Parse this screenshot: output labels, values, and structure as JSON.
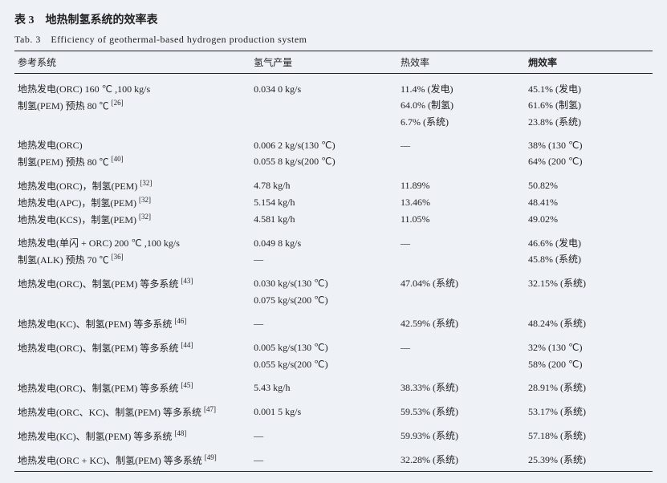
{
  "title_cn": "表 3　地热制氢系统的效率表",
  "title_en": "Tab. 3　Efficiency of geothermal-based hydrogen production system",
  "headers": {
    "c1": "参考系统",
    "c2": "氢气产量",
    "c3": "热效率",
    "c4": "㶲效率"
  },
  "rows": [
    {
      "c1": "地热发电(ORC) 160 ℃ ,100 kg/s",
      "c2": "0.034 0 kg/s",
      "c3": "11.4% (发电)",
      "c4": "45.1% (发电)",
      "group": true
    },
    {
      "c1": "制氢(PEM) 预热 80 ℃ [26]",
      "c2": "",
      "c3": "64.0% (制氢)",
      "c4": "61.6% (制氢)",
      "sup": "[26]",
      "c1_base": "制氢(PEM) 预热 80 ℃ "
    },
    {
      "c1": "",
      "c2": "",
      "c3": "6.7% (系统)",
      "c4": "23.8% (系统)"
    },
    {
      "c1": "地热发电(ORC)",
      "c2": "0.006 2 kg/s(130 ℃)",
      "c3": "—",
      "c4": "38% (130 ℃)",
      "group": true
    },
    {
      "c1": "制氢(PEM) 预热 80 ℃ [40]",
      "c2": "0.055 8 kg/s(200 ℃)",
      "c3": "",
      "c4": "64% (200 ℃)",
      "sup": "[40]",
      "c1_base": "制氢(PEM) 预热 80 ℃ "
    },
    {
      "c1": "地热发电(ORC)，制氢(PEM) [32]",
      "c2": "4.78 kg/h",
      "c3": "11.89%",
      "c4": "50.82%",
      "group": true,
      "sup": "[32]",
      "c1_base": "地热发电(ORC)，制氢(PEM) "
    },
    {
      "c1": "地热发电(APC)，制氢(PEM) [32]",
      "c2": "5.154 kg/h",
      "c3": "13.46%",
      "c4": "48.41%",
      "sup": "[32]",
      "c1_base": "地热发电(APC)，制氢(PEM) "
    },
    {
      "c1": "地热发电(KCS)，制氢(PEM) [32]",
      "c2": "4.581 kg/h",
      "c3": "11.05%",
      "c4": "49.02%",
      "sup": "[32]",
      "c1_base": "地热发电(KCS)，制氢(PEM) "
    },
    {
      "c1": "地热发电(单闪 + ORC) 200 ℃ ,100 kg/s",
      "c2": "0.049 8 kg/s",
      "c3": "—",
      "c4": "46.6% (发电)",
      "group": true
    },
    {
      "c1": "制氢(ALK) 预热 70 ℃ [36]",
      "c2": "—",
      "c3": "",
      "c4": "45.8% (系统)",
      "sup": "[36]",
      "c1_base": "制氢(ALK) 预热 70 ℃ "
    },
    {
      "c1": "地热发电(ORC)、制氢(PEM) 等多系统 [43]",
      "c2": "0.030 kg/s(130 ℃)",
      "c3": "47.04% (系统)",
      "c4": "32.15% (系统)",
      "group": true,
      "sup": "[43]",
      "c1_base": "地热发电(ORC)、制氢(PEM) 等多系统 "
    },
    {
      "c1": "",
      "c2": "0.075 kg/s(200 ℃)",
      "c3": "",
      "c4": ""
    },
    {
      "c1": "地热发电(KC)、制氢(PEM) 等多系统 [46]",
      "c2": "—",
      "c3": "42.59% (系统)",
      "c4": "48.24% (系统)",
      "group": true,
      "sup": "[46]",
      "c1_base": "地热发电(KC)、制氢(PEM) 等多系统 "
    },
    {
      "c1": "地热发电(ORC)、制氢(PEM) 等多系统 [44]",
      "c2": "0.005 kg/s(130 ℃)",
      "c3": "—",
      "c4": "32% (130 ℃)",
      "group": true,
      "sup": "[44]",
      "c1_base": "地热发电(ORC)、制氢(PEM) 等多系统 "
    },
    {
      "c1": "",
      "c2": "0.055 kg/s(200 ℃)",
      "c3": "",
      "c4": "58% (200 ℃)"
    },
    {
      "c1": "地热发电(ORC)、制氢(PEM) 等多系统 [45]",
      "c2": "5.43 kg/h",
      "c3": "38.33% (系统)",
      "c4": "28.91% (系统)",
      "group": true,
      "sup": "[45]",
      "c1_base": "地热发电(ORC)、制氢(PEM) 等多系统 "
    },
    {
      "c1": "地热发电(ORC、KC)、制氢(PEM) 等多系统 [47]",
      "c2": "0.001 5 kg/s",
      "c3": "59.53% (系统)",
      "c4": "53.17% (系统)",
      "group": true,
      "sup": "[47]",
      "c1_base": "地热发电(ORC、KC)、制氢(PEM) 等多系统 "
    },
    {
      "c1": "地热发电(KC)、制氢(PEM) 等多系统 [48]",
      "c2": "—",
      "c3": "59.93% (系统)",
      "c4": "57.18% (系统)",
      "group": true,
      "sup": "[48]",
      "c1_base": "地热发电(KC)、制氢(PEM) 等多系统 "
    },
    {
      "c1": "地热发电(ORC + KC)、制氢(PEM) 等多系统 [49]",
      "c2": "—",
      "c3": "32.28% (系统)",
      "c4": "25.39% (系统)",
      "group": true,
      "last": true,
      "sup": "[49]",
      "c1_base": "地热发电(ORC + KC)、制氢(PEM) 等多系统 "
    }
  ]
}
